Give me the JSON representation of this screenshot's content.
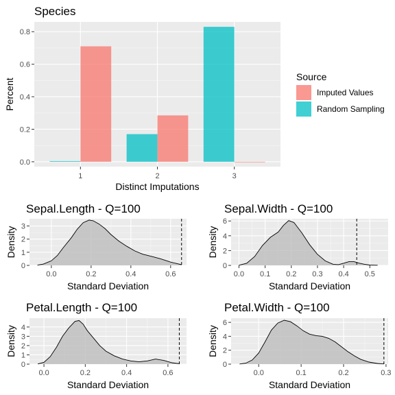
{
  "chart_data": [
    {
      "type": "bar",
      "title": "Species",
      "xlabel": "Distinct Imputations",
      "ylabel": "Percent",
      "categories": [
        "1",
        "2",
        "3"
      ],
      "ylim": [
        -0.03,
        0.86
      ],
      "yticks": [
        0.0,
        0.2,
        0.4,
        0.6,
        0.8
      ],
      "ytick_labels": [
        "0.0",
        "0.2",
        "0.4",
        "0.6",
        "0.8"
      ],
      "legend": {
        "title": "Source",
        "position": "right",
        "entries": [
          "Imputed Values",
          "Random Sampling"
        ]
      },
      "series": [
        {
          "name": "Random Sampling",
          "color": "#00bfc4",
          "values": [
            0.004,
            0.17,
            0.83
          ]
        },
        {
          "name": "Imputed Values",
          "color": "#f8766d",
          "values": [
            0.71,
            0.285,
            0.0
          ]
        }
      ]
    },
    {
      "type": "area",
      "title": "Sepal.Length - Q=100",
      "xlabel": "Standard Deviation",
      "ylabel": "Density",
      "xlim": [
        -0.11,
        0.68
      ],
      "ylim": [
        0,
        3.55
      ],
      "xticks": [
        0.0,
        0.2,
        0.4,
        0.6
      ],
      "xtick_labels": [
        "0.0",
        "0.2",
        "0.4",
        "0.6"
      ],
      "yticks": [
        0,
        1,
        2,
        3
      ],
      "ytick_labels": [
        "0",
        "1",
        "2",
        "3"
      ],
      "vline": 0.655,
      "density": {
        "x": [
          -0.07,
          -0.04,
          0.0,
          0.03,
          0.06,
          0.1,
          0.13,
          0.16,
          0.19,
          0.21,
          0.24,
          0.27,
          0.3,
          0.34,
          0.38,
          0.42,
          0.46,
          0.5,
          0.55,
          0.6,
          0.655
        ],
        "y": [
          0.02,
          0.1,
          0.35,
          0.75,
          1.35,
          2.1,
          2.75,
          3.25,
          3.45,
          3.4,
          3.15,
          2.8,
          2.35,
          1.85,
          1.45,
          1.1,
          0.85,
          0.7,
          0.5,
          0.25,
          0.05
        ]
      }
    },
    {
      "type": "area",
      "title": "Sepal.Width - Q=100",
      "xlabel": "Standard Deviation",
      "ylabel": "Density",
      "xlim": [
        -0.03,
        0.57
      ],
      "ylim": [
        0,
        6.3
      ],
      "xticks": [
        0.0,
        0.1,
        0.2,
        0.3,
        0.4,
        0.5
      ],
      "xtick_labels": [
        "0.0",
        "0.1",
        "0.2",
        "0.3",
        "0.4",
        "0.5"
      ],
      "yticks": [
        0,
        2,
        4,
        6
      ],
      "ytick_labels": [
        "0",
        "2",
        "4",
        "6"
      ],
      "vline": 0.45,
      "density": {
        "x": [
          0.0,
          0.03,
          0.06,
          0.09,
          0.12,
          0.15,
          0.17,
          0.19,
          0.21,
          0.24,
          0.27,
          0.3,
          0.33,
          0.36,
          0.38,
          0.4,
          0.42,
          0.44,
          0.46,
          0.48,
          0.5,
          0.53
        ],
        "y": [
          0.02,
          0.3,
          1.2,
          2.7,
          3.8,
          4.5,
          5.4,
          6.05,
          5.8,
          4.4,
          2.8,
          1.5,
          0.6,
          0.15,
          0.1,
          0.3,
          0.5,
          0.5,
          0.3,
          0.15,
          0.05,
          0.02
        ]
      }
    },
    {
      "type": "area",
      "title": "Petal.Length - Q=100",
      "xlabel": "Standard Deviation",
      "ylabel": "Density",
      "xlim": [
        -0.07,
        0.69
      ],
      "ylim": [
        0,
        4.95
      ],
      "xticks": [
        0.0,
        0.2,
        0.4,
        0.6
      ],
      "xtick_labels": [
        "0.0",
        "0.2",
        "0.4",
        "0.6"
      ],
      "yticks": [
        0,
        1,
        2,
        3,
        4
      ],
      "ytick_labels": [
        "0",
        "1",
        "2",
        "3",
        "4"
      ],
      "vline": 0.655,
      "density": {
        "x": [
          -0.03,
          0.0,
          0.03,
          0.06,
          0.09,
          0.12,
          0.15,
          0.17,
          0.19,
          0.21,
          0.24,
          0.27,
          0.3,
          0.34,
          0.38,
          0.42,
          0.46,
          0.5,
          0.54,
          0.58,
          0.62,
          0.655
        ],
        "y": [
          0.02,
          0.2,
          0.8,
          1.8,
          3.0,
          3.9,
          4.6,
          4.7,
          4.3,
          3.6,
          2.8,
          2.0,
          1.4,
          0.9,
          0.55,
          0.35,
          0.25,
          0.35,
          0.55,
          0.4,
          0.15,
          0.05
        ]
      }
    },
    {
      "type": "area",
      "title": "Petal.Width - Q=100",
      "xlabel": "Standard Deviation",
      "ylabel": "Density",
      "xlim": [
        -0.065,
        0.305
      ],
      "ylim": [
        0,
        6.6
      ],
      "xticks": [
        0.0,
        0.1,
        0.2,
        0.3
      ],
      "xtick_labels": [
        "0.0",
        "0.1",
        "0.2",
        "0.3"
      ],
      "yticks": [
        0,
        2,
        4,
        6
      ],
      "ytick_labels": [
        "0",
        "2",
        "4",
        "6"
      ],
      "vline": 0.295,
      "density": {
        "x": [
          -0.045,
          -0.03,
          -0.015,
          0.0,
          0.015,
          0.03,
          0.045,
          0.06,
          0.075,
          0.09,
          0.105,
          0.12,
          0.135,
          0.15,
          0.165,
          0.18,
          0.195,
          0.21,
          0.225,
          0.24,
          0.26,
          0.28,
          0.295
        ],
        "y": [
          0.02,
          0.15,
          0.6,
          1.6,
          3.2,
          4.9,
          5.9,
          6.3,
          6.1,
          5.5,
          4.8,
          4.3,
          4.1,
          4.0,
          3.7,
          3.2,
          2.5,
          1.8,
          1.2,
          0.7,
          0.3,
          0.1,
          0.03
        ]
      }
    }
  ]
}
